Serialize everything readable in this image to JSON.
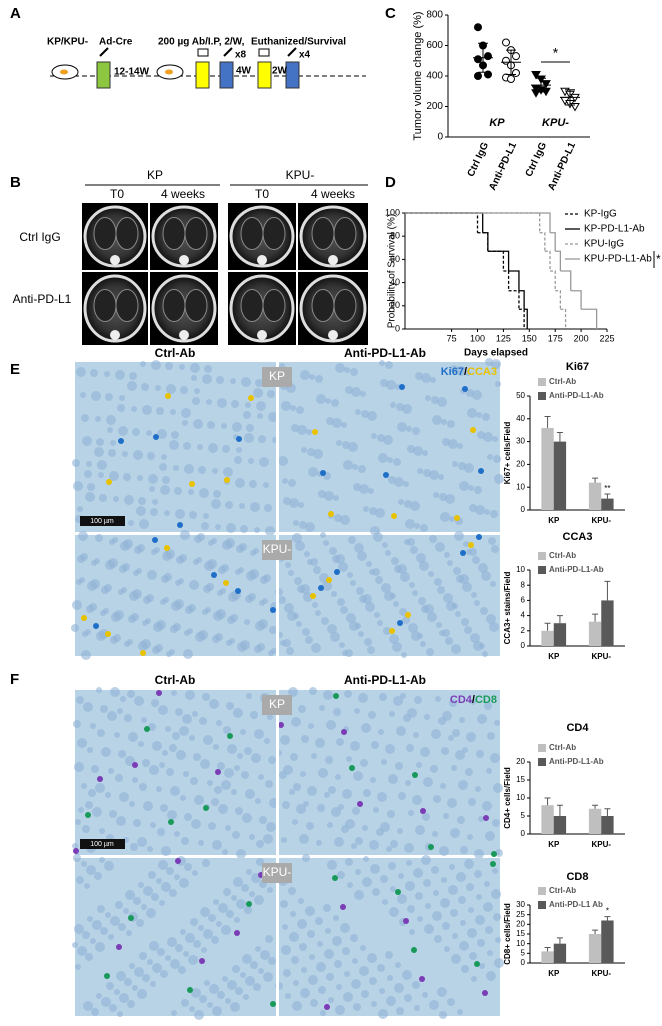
{
  "panel_labels": [
    "A",
    "B",
    "C",
    "D",
    "E",
    "F"
  ],
  "schematic": {
    "model": "KP/KPU-",
    "induction": "Ad-Cre",
    "dose": "200 µg Ab/I.P, 2/W,",
    "endpoint": "Euthanized/Survival",
    "interval_1": "12-14W",
    "repeat_1": "x8",
    "interval_2": "4W",
    "repeat_2": "x4",
    "interval_3": "2W"
  },
  "ct": {
    "groups": [
      "KP",
      "KPU-"
    ],
    "timepoints": [
      "T0",
      "4 weeks",
      "T0",
      "4 weeks"
    ],
    "rows": [
      "Ctrl IgG",
      "Anti-PD-L1"
    ]
  },
  "ihc_E": {
    "columns": [
      "Ctrl-Ab",
      "Anti-PD-L1-Ab"
    ],
    "rows": [
      "KP",
      "KPU-"
    ],
    "stain_1": "Ki67",
    "separator": "/",
    "stain_2": "CCA3",
    "scale_bar": "100 µm"
  },
  "ihc_F": {
    "columns": [
      "Ctrl-Ab",
      "Anti-PD-L1-Ab"
    ],
    "rows": [
      "KP",
      "KPU-"
    ],
    "stain_1": "CD4",
    "separator": "/",
    "stain_2": "CD8",
    "scale_bar": "100 µm"
  },
  "chart_data": [
    {
      "type": "dot",
      "ylabel": "Tumor volume change (%)",
      "ylim": [
        0,
        800
      ],
      "yticks": [
        0,
        200,
        400,
        600,
        800
      ],
      "categories": [
        "Ctrl IgG",
        "Anti-PD-L1",
        "Ctrl IgG",
        "Anti-PD-L1"
      ],
      "groups": [
        "KP",
        "KPU-"
      ],
      "markers": [
        "circle-filled",
        "circle-open",
        "triangle-filled",
        "triangle-open"
      ],
      "points": [
        [
          720,
          600,
          530,
          510,
          470,
          410,
          400
        ],
        [
          620,
          570,
          530,
          500,
          470,
          420,
          390,
          380
        ],
        [
          410,
          380,
          350,
          320,
          310,
          300,
          290
        ],
        [
          300,
          280,
          260,
          240,
          220,
          200
        ]
      ],
      "means": [
        520,
        490,
        340,
        260
      ],
      "sd": [
        95,
        80,
        45,
        50
      ],
      "annotation": "*"
    },
    {
      "type": "step",
      "xlabel": "Days elapsed",
      "ylabel": "Probability of Survival (%)",
      "xlim": [
        30,
        225
      ],
      "ylim": [
        0,
        100
      ],
      "xticks": [
        75,
        100,
        125,
        150,
        175,
        200,
        225
      ],
      "yticks": [
        0,
        20,
        40,
        60,
        80,
        100
      ],
      "annotation": "*",
      "series": [
        {
          "name": "KP-IgG",
          "color": "#000000",
          "dash": true,
          "x": [
            30,
            100,
            110,
            125,
            130,
            140,
            145
          ],
          "values": [
            100,
            83,
            67,
            50,
            33,
            17,
            0
          ]
        },
        {
          "name": "KP-PD-L1-Ab",
          "color": "#000000",
          "dash": false,
          "x": [
            30,
            105,
            110,
            130,
            140,
            145,
            148
          ],
          "values": [
            100,
            83,
            67,
            50,
            33,
            17,
            0
          ]
        },
        {
          "name": "KPU-IgG",
          "color": "#999999",
          "dash": true,
          "x": [
            30,
            160,
            165,
            170,
            175,
            180,
            185
          ],
          "values": [
            100,
            83,
            67,
            50,
            33,
            17,
            0
          ]
        },
        {
          "name": "KPU-PD-L1-Ab",
          "color": "#999999",
          "dash": false,
          "x": [
            30,
            170,
            175,
            180,
            190,
            200,
            215
          ],
          "values": [
            100,
            83,
            67,
            50,
            33,
            17,
            0
          ]
        }
      ]
    },
    {
      "type": "bar",
      "title": "Ki67",
      "ylabel": "Ki67+ cells/Field",
      "ylim": [
        0,
        50
      ],
      "yticks": [
        0,
        10,
        20,
        30,
        40,
        50
      ],
      "categories": [
        "KP",
        "KPU-"
      ],
      "annotation": "**",
      "series": [
        {
          "name": "Ctrl-Ab",
          "color": "#bfbfbf",
          "values": [
            36,
            12
          ],
          "errors": [
            5,
            2
          ]
        },
        {
          "name": "Anti-PD-L1-Ab",
          "color": "#595959",
          "values": [
            30,
            5
          ],
          "errors": [
            4,
            2
          ]
        }
      ]
    },
    {
      "type": "bar",
      "title": "CCA3",
      "ylabel": "CCA3+ stains/Field",
      "ylim": [
        0,
        10
      ],
      "yticks": [
        0,
        2,
        4,
        6,
        8,
        10
      ],
      "categories": [
        "KP",
        "KPU-"
      ],
      "series": [
        {
          "name": "Ctrl-Ab",
          "color": "#bfbfbf",
          "values": [
            2,
            3.2
          ],
          "errors": [
            1,
            1
          ]
        },
        {
          "name": "Anti-PD-L1-Ab",
          "color": "#595959",
          "values": [
            3,
            6
          ],
          "errors": [
            1,
            2.5
          ]
        }
      ]
    },
    {
      "type": "bar",
      "title": "CD4",
      "ylabel": "CD4+ cells/Field",
      "ylim": [
        0,
        20
      ],
      "yticks": [
        0,
        5,
        10,
        15,
        20
      ],
      "categories": [
        "KP",
        "KPU-"
      ],
      "series": [
        {
          "name": "Ctrl-Ab",
          "color": "#bfbfbf",
          "values": [
            8,
            7
          ],
          "errors": [
            2,
            1
          ]
        },
        {
          "name": "Anti-PD-L1-Ab",
          "color": "#595959",
          "values": [
            5,
            5
          ],
          "errors": [
            3,
            2
          ]
        }
      ]
    },
    {
      "type": "bar",
      "title": "CD8",
      "ylabel": "CD8+ cells/Field",
      "ylim": [
        0,
        30
      ],
      "yticks": [
        0,
        5,
        10,
        15,
        20,
        25,
        30
      ],
      "categories": [
        "KP",
        "KPU-"
      ],
      "annotation": "*",
      "series": [
        {
          "name": "Ctrl-Ab",
          "color": "#bfbfbf",
          "values": [
            6,
            15
          ],
          "errors": [
            2,
            2
          ]
        },
        {
          "name": "Anti-PD-L1 Ab",
          "color": "#595959",
          "values": [
            10,
            22
          ],
          "errors": [
            3,
            2
          ]
        }
      ]
    }
  ]
}
